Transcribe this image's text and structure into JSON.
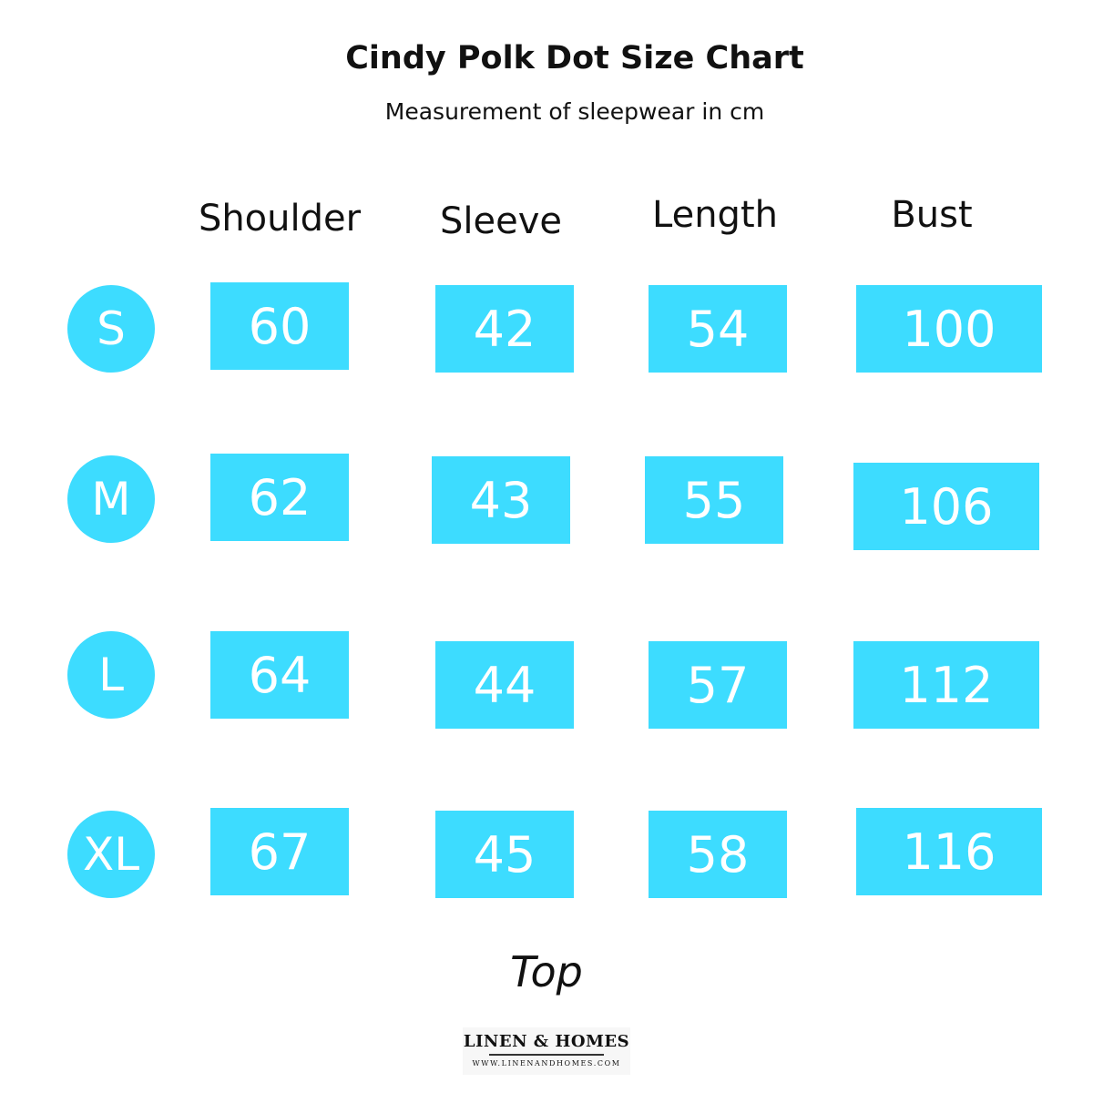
{
  "title": "Cindy Polk Dot Size Chart",
  "subtitle": "Measurement of sleepwear in cm",
  "columns": [
    "Shoulder",
    "Sleeve",
    "Length",
    "Bust"
  ],
  "rows": [
    {
      "size": "S",
      "values": [
        "60",
        "42",
        "54",
        "100"
      ]
    },
    {
      "size": "M",
      "values": [
        "62",
        "43",
        "55",
        "106"
      ]
    },
    {
      "size": "L",
      "values": [
        "64",
        "44",
        "57",
        "112"
      ]
    },
    {
      "size": "XL",
      "values": [
        "67",
        "45",
        "58",
        "116"
      ]
    }
  ],
  "footer": "Top",
  "logo": {
    "name": "LINEN & HOMES",
    "url": "WWW.LINENANDHOMES.COM"
  },
  "colors": {
    "accent": "#3ddcff",
    "text": "#111111",
    "cell_text": "#ffffff"
  }
}
